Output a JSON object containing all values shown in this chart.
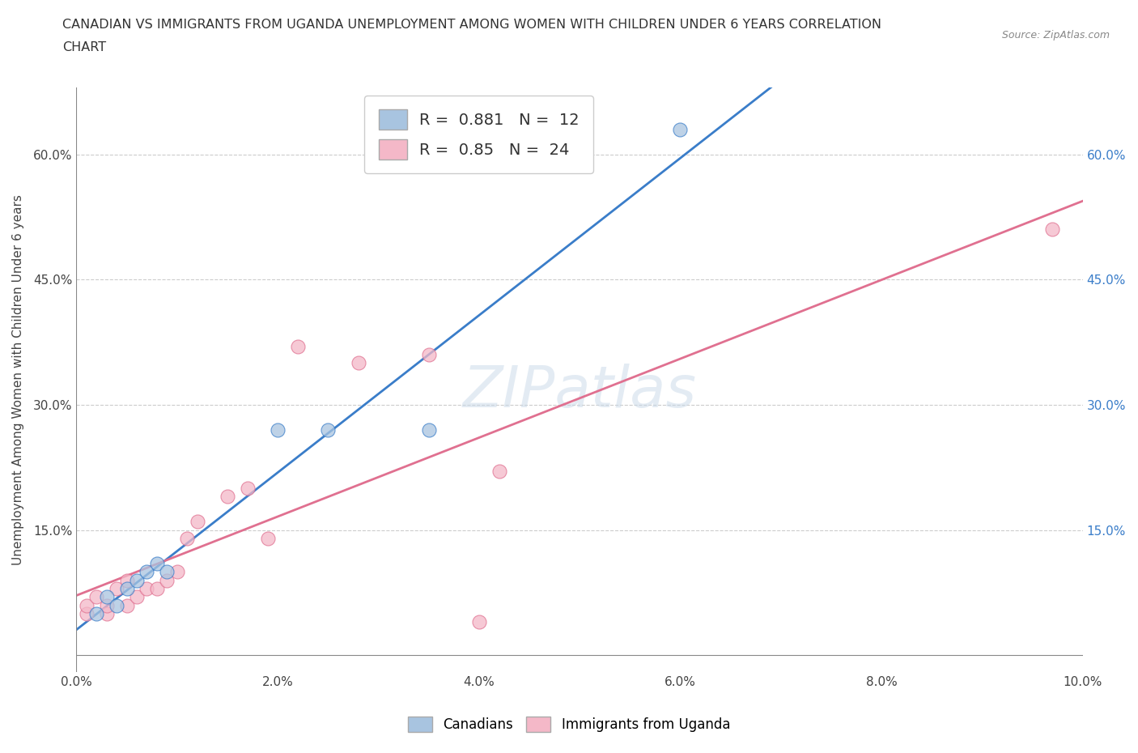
{
  "title_line1": "CANADIAN VS IMMIGRANTS FROM UGANDA UNEMPLOYMENT AMONG WOMEN WITH CHILDREN UNDER 6 YEARS CORRELATION",
  "title_line2": "CHART",
  "source": "Source: ZipAtlas.com",
  "ylabel": "Unemployment Among Women with Children Under 6 years",
  "xlim": [
    0.0,
    0.1
  ],
  "ylim": [
    -0.02,
    0.68
  ],
  "xtick_labels": [
    "0.0%",
    "2.0%",
    "4.0%",
    "6.0%",
    "8.0%",
    "10.0%"
  ],
  "xtick_vals": [
    0.0,
    0.02,
    0.04,
    0.06,
    0.08,
    0.1
  ],
  "ytick_labels": [
    "15.0%",
    "30.0%",
    "45.0%",
    "60.0%"
  ],
  "ytick_vals": [
    0.15,
    0.3,
    0.45,
    0.6
  ],
  "canadian_x": [
    0.002,
    0.003,
    0.004,
    0.005,
    0.006,
    0.007,
    0.008,
    0.009,
    0.02,
    0.025,
    0.035,
    0.06
  ],
  "canadian_y": [
    0.05,
    0.07,
    0.06,
    0.08,
    0.09,
    0.1,
    0.11,
    0.1,
    0.27,
    0.27,
    0.27,
    0.63
  ],
  "uganda_x": [
    0.001,
    0.001,
    0.002,
    0.003,
    0.003,
    0.004,
    0.005,
    0.005,
    0.006,
    0.007,
    0.008,
    0.009,
    0.01,
    0.011,
    0.012,
    0.015,
    0.017,
    0.019,
    0.022,
    0.028,
    0.035,
    0.04,
    0.042,
    0.097
  ],
  "uganda_y": [
    0.05,
    0.06,
    0.07,
    0.05,
    0.06,
    0.08,
    0.06,
    0.09,
    0.07,
    0.08,
    0.08,
    0.09,
    0.1,
    0.14,
    0.16,
    0.19,
    0.2,
    0.14,
    0.37,
    0.35,
    0.36,
    0.04,
    0.22,
    0.51
  ],
  "canadian_color": "#a8c4e0",
  "uganda_color": "#f4b8c8",
  "canadian_line_color": "#3a7dc9",
  "uganda_line_color": "#e07090",
  "R_canadian": 0.881,
  "N_canadian": 12,
  "R_uganda": 0.85,
  "N_uganda": 24,
  "watermark": "ZIPatlas",
  "legend_canadians": "Canadians",
  "legend_uganda": "Immigrants from Uganda",
  "background_color": "#ffffff",
  "grid_color": "#cccccc"
}
